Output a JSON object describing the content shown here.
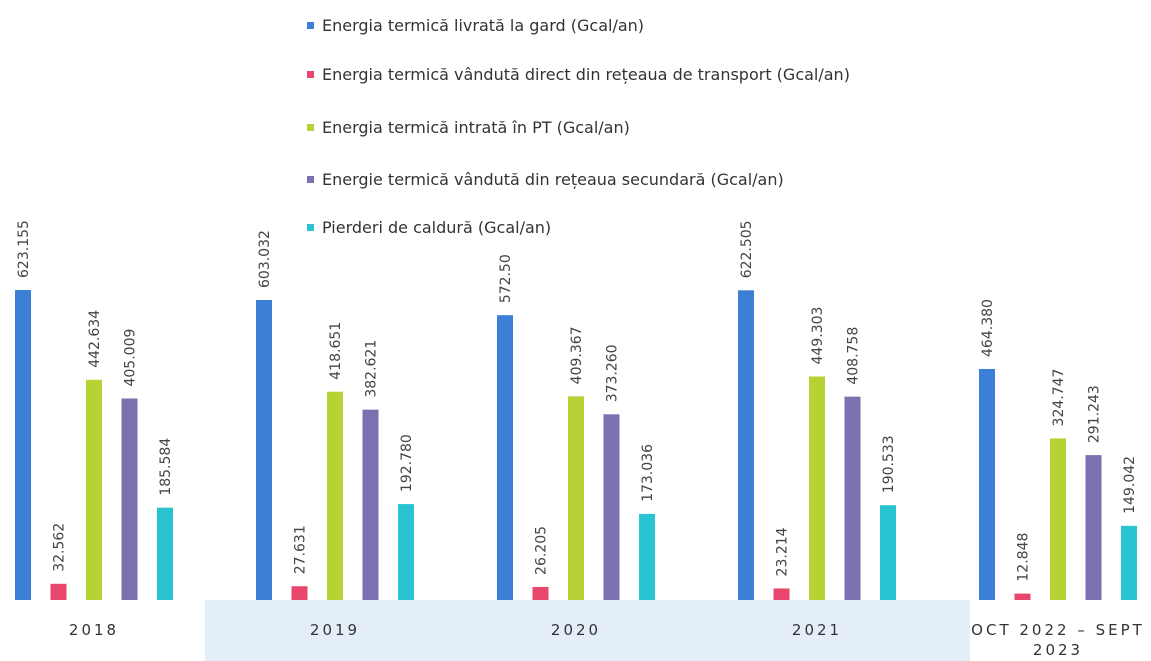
{
  "chart_data": {
    "type": "bar",
    "categories": [
      "2018",
      "2019",
      "2020",
      "2021",
      "OCT 2022 – SEPT 2023"
    ],
    "series": [
      {
        "name": "Energia termică livrată la gard (Gcal/an)",
        "color": "#3b80d6",
        "values": [
          623.155,
          603.032,
          572.5,
          622.505,
          464.38
        ],
        "value_labels": [
          "623.155",
          "603.032",
          "572.50",
          "622.505",
          "464.380"
        ]
      },
      {
        "name": "Energia termică vândută direct din rețeaua de transport (Gcal/an)",
        "color": "#e8466c",
        "values": [
          32.562,
          27.631,
          26.205,
          23.214,
          12.848
        ],
        "value_labels": [
          "32.562",
          "27.631",
          "26.205",
          "23.214",
          "12.848"
        ]
      },
      {
        "name": "Energia termică intrată în PT (Gcal/an)",
        "color": "#b6d336",
        "values": [
          442.634,
          418.651,
          409.367,
          449.303,
          324.747
        ],
        "value_labels": [
          "442.634",
          "418.651",
          "409.367",
          "449.303",
          "324.747"
        ]
      },
      {
        "name": "Energie termică vândută din rețeaua secundară (Gcal/an)",
        "color": "#7c70b1",
        "values": [
          405.009,
          382.621,
          373.26,
          408.758,
          291.243
        ],
        "value_labels": [
          "405.009",
          "382.621",
          "373.260",
          "408.758",
          "291.243"
        ]
      },
      {
        "name": "Pierderi de caldură (Gcal/an)",
        "color": "#29c3d1",
        "values": [
          185.584,
          192.78,
          173.036,
          190.533,
          149.042
        ],
        "value_labels": [
          "185.584",
          "192.780",
          "173.036",
          "190.533",
          "149.042"
        ]
      }
    ]
  }
}
